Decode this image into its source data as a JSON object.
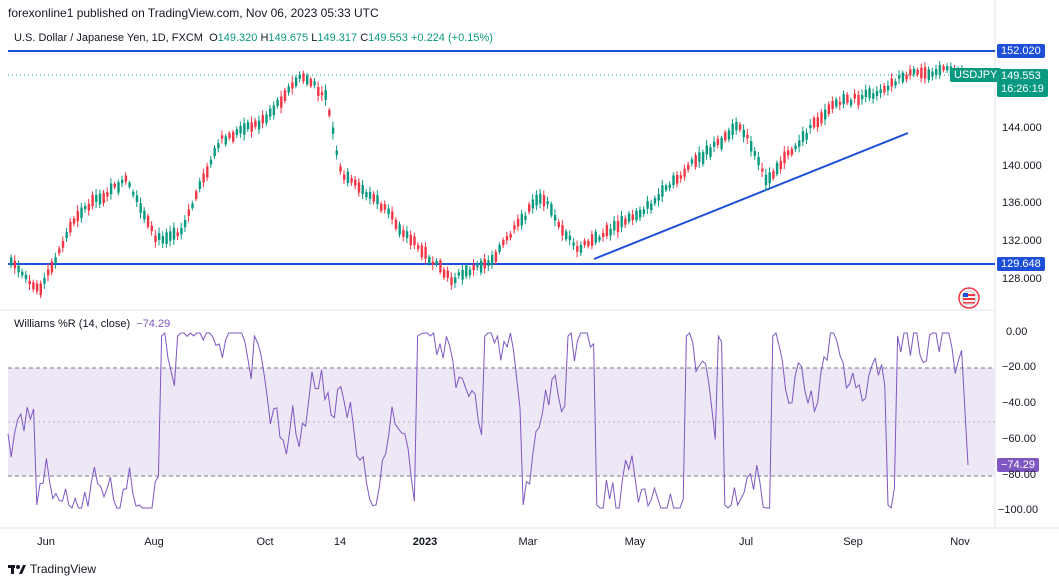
{
  "header": {
    "publisher": "forexonline1 published on TradingView.com, Nov 06, 2023 05:33 UTC"
  },
  "symbol": {
    "name": "U.S. Dollar / Japanese Yen, 1D, FXCM",
    "open_label": "O",
    "open": "149.320",
    "high_label": "H",
    "high": "149.675",
    "low_label": "L",
    "low": "149.317",
    "close_label": "C",
    "close": "149.553",
    "change": "+0.224 (+0.15%)",
    "ticker": "USDJPY",
    "countdown": "16:26:19"
  },
  "price_axis": [
    "152.020",
    "149.553",
    "144.000",
    "140.000",
    "136.000",
    "132.000",
    "129.648",
    "128.000"
  ],
  "levels": {
    "resistance": "152.020",
    "support": "129.648"
  },
  "indicator": {
    "name": "Williams %R (14, close)",
    "value": "−74.29",
    "axis": [
      "0.00",
      "−20.00",
      "−40.00",
      "−60.00",
      "−80.00",
      "−100.00"
    ],
    "tag": "−74.29"
  },
  "x_axis": [
    "Jun",
    "Aug",
    "Oct",
    "14",
    "2023",
    "Mar",
    "May",
    "Jul",
    "Sep",
    "Nov"
  ],
  "footer": {
    "brand": "TradingView"
  },
  "colors": {
    "up": "#089981",
    "down": "#f23645",
    "lines": "#1e4fd8",
    "wr": "#7e57c2",
    "wr_fill": "#ede7f6"
  }
}
